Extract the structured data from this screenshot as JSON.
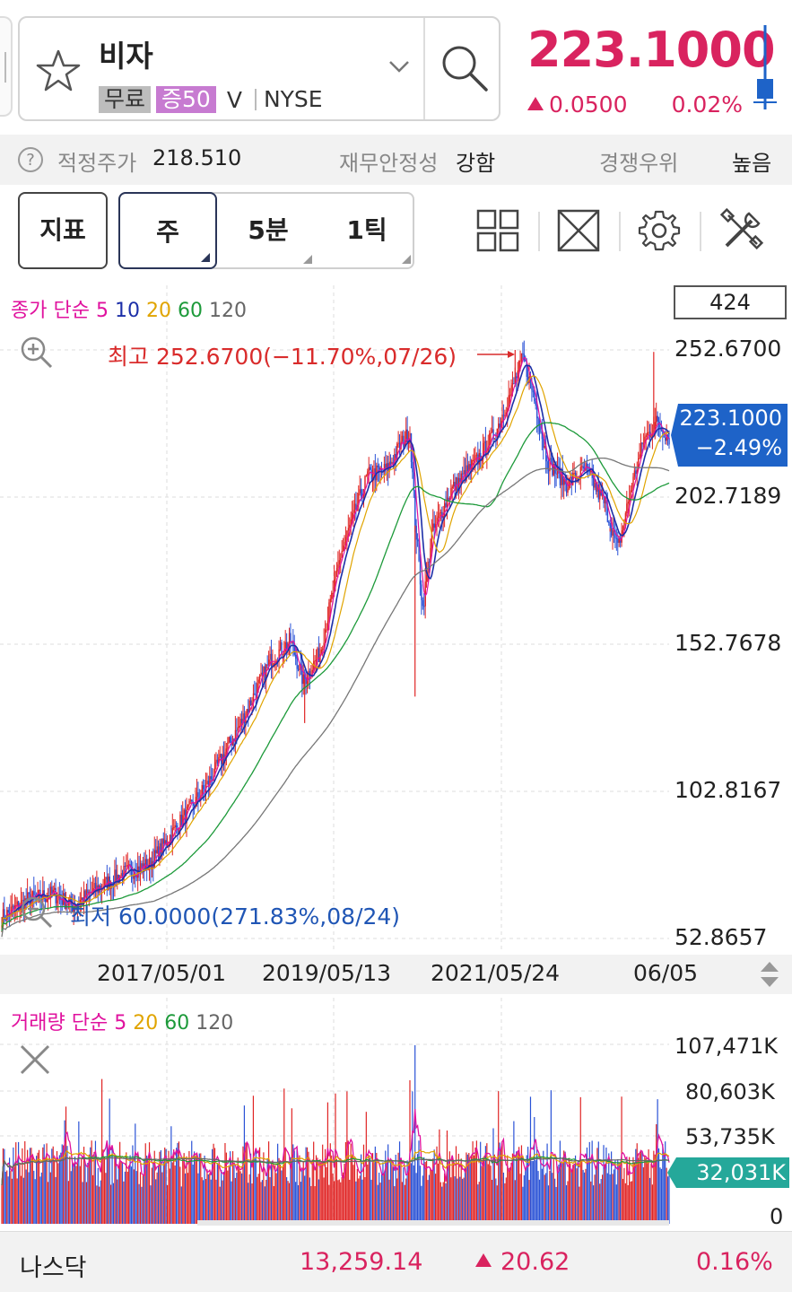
{
  "header": {
    "stock_name": "비자",
    "badge_free": "무료",
    "badge_margin": "증50",
    "ticker": "V",
    "exchange": "NYSE",
    "price": "223.1000",
    "change": "0.0500",
    "change_pct": "0.02%",
    "change_direction": "up",
    "accent_color": "#d9235f"
  },
  "info_bar": {
    "fair_price_label": "적정주가",
    "fair_price_value": "218.510",
    "financial_label": "재무안정성",
    "financial_value": "강함",
    "competitive_label": "경쟁우위",
    "competitive_value": "높음"
  },
  "toolbar": {
    "indicator_label": "지표",
    "periods": [
      {
        "label": "주",
        "active": true
      },
      {
        "label": "5분",
        "active": false
      },
      {
        "label": "1틱",
        "active": false
      }
    ],
    "icons": [
      "layout-grid-icon",
      "expand-icon",
      "gear-icon",
      "tools-icon"
    ]
  },
  "price_chart": {
    "legend_prefix": "종가 단순",
    "ma": [
      {
        "label": "5",
        "color": "#e0119e"
      },
      {
        "label": "10",
        "color": "#1c2fa8"
      },
      {
        "label": "20",
        "color": "#e0a400"
      },
      {
        "label": "60",
        "color": "#1d9a3a"
      },
      {
        "label": "120",
        "color": "#666666"
      }
    ],
    "count_box": "424",
    "y_labels": [
      "252.6700",
      "202.7189",
      "152.7678",
      "102.8167",
      "52.8657"
    ],
    "high_annotation": "최고 252.6700(−11.70%,07/26)",
    "low_annotation": "최저 60.0000(271.83%,08/24)",
    "current_value": "223.1000",
    "current_pct": "−2.49%",
    "x_labels": [
      "2017/05/01",
      "2019/05/13",
      "2021/05/24",
      "06/05"
    ]
  },
  "volume_chart": {
    "legend_prefix": "거래량 단순",
    "ma": [
      {
        "label": "5",
        "color": "#e0119e"
      },
      {
        "label": "20",
        "color": "#e0a400"
      },
      {
        "label": "60",
        "color": "#1d9a3a"
      },
      {
        "label": "120",
        "color": "#666666"
      }
    ],
    "y_labels": [
      "107,471K",
      "80,603K",
      "53,735K",
      "0"
    ],
    "current_volume": "32,031K"
  },
  "bottom_bar": {
    "index_name": "나스닥",
    "index_value": "13,259.14",
    "index_change": "20.62",
    "index_pct": "0.16%"
  }
}
